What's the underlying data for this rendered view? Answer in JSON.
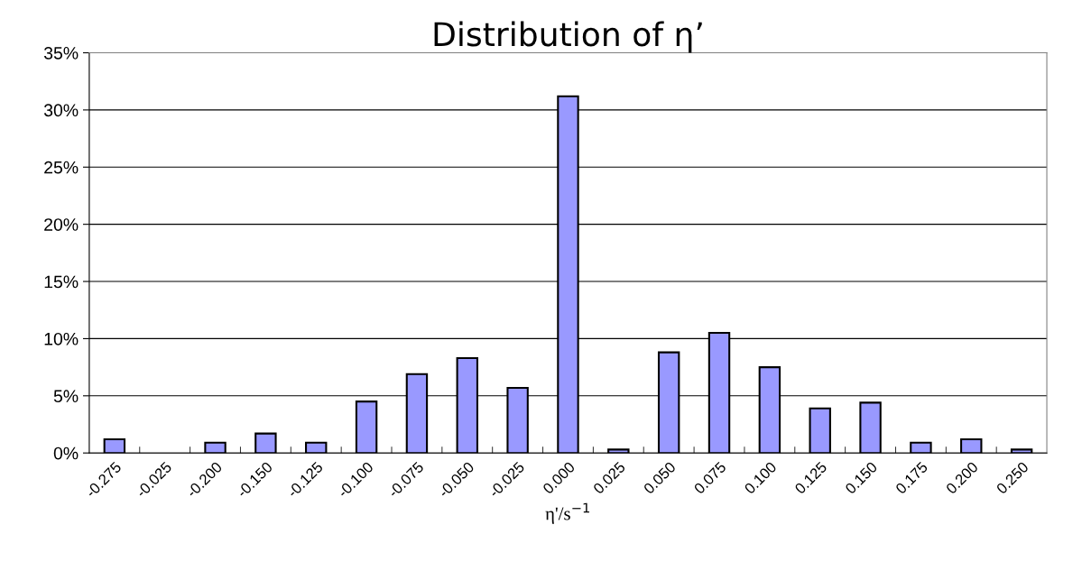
{
  "chart_data": {
    "type": "bar",
    "title": "Distribution of η’",
    "xlabel": "η'/s$^{−1}$",
    "categories": [
      "-0.275",
      "-0.025",
      "-0.200",
      "-0.150",
      "-0.125",
      "-0.100",
      "-0.075",
      "-0.050",
      "-0.025",
      "0.000",
      "0.025",
      "0.050",
      "0.075",
      "0.100",
      "0.125",
      "0.150",
      "0.175",
      "0.200",
      "0.250"
    ],
    "values": [
      1.2,
      null,
      0.9,
      1.7,
      0.9,
      4.5,
      6.9,
      8.3,
      5.7,
      31.2,
      0.3,
      8.8,
      10.5,
      7.5,
      3.9,
      4.4,
      0.9,
      1.2,
      0.3
    ],
    "color": "#9999ff",
    "ylim": [
      0,
      35
    ],
    "yticks": [
      {
        "value": 0,
        "label": "0%"
      },
      {
        "value": 5,
        "label": "5%"
      },
      {
        "value": 10,
        "label": "10%"
      },
      {
        "value": 15,
        "label": "15%"
      },
      {
        "value": 20,
        "label": "20%"
      },
      {
        "value": 25,
        "label": "25%"
      },
      {
        "value": 30,
        "label": "30%"
      },
      {
        "value": 35,
        "label": "35%"
      }
    ],
    "grid": "y",
    "legend": false
  }
}
